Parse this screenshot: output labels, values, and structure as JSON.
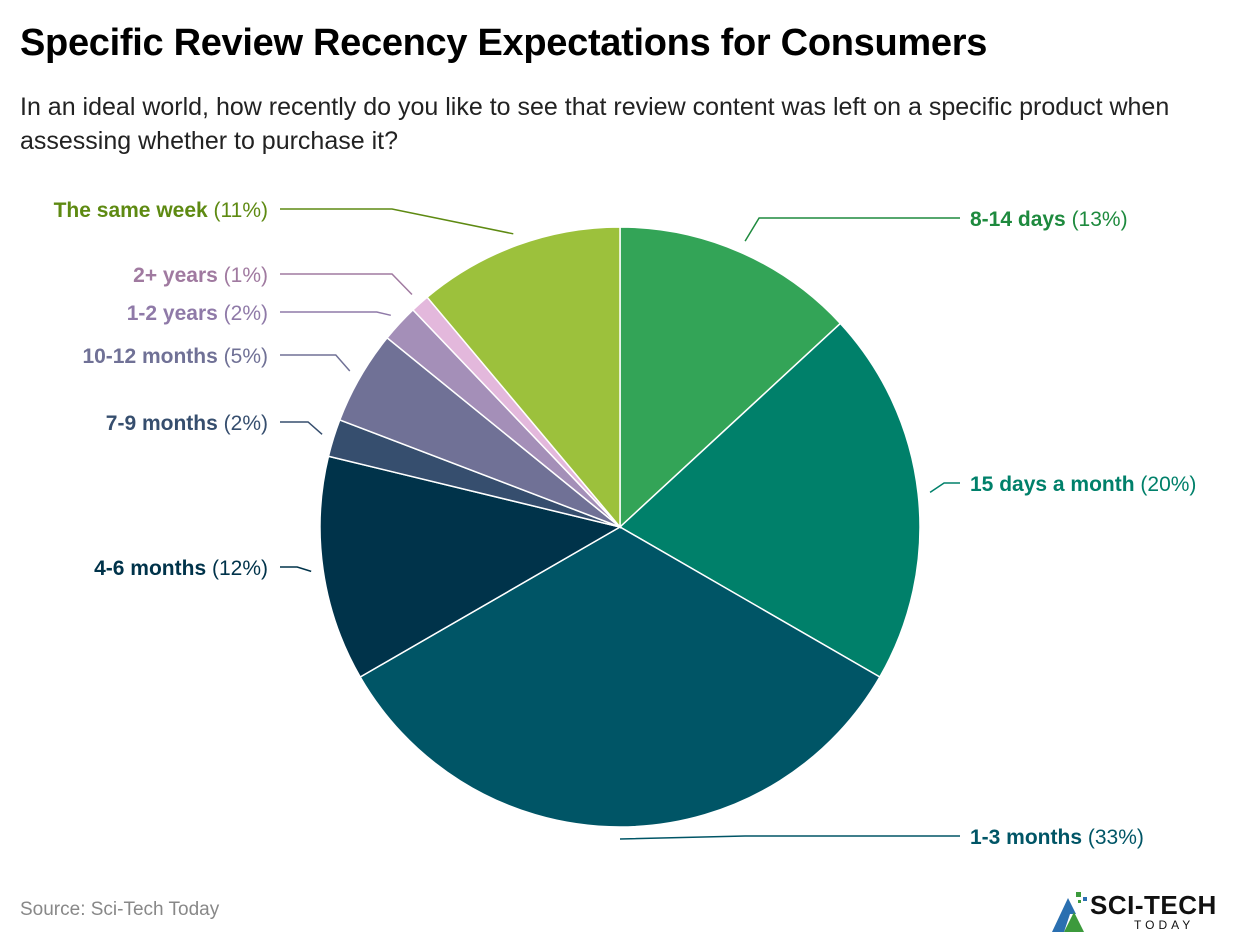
{
  "header": {
    "title": "Specific Review Recency Expectations for Consumers",
    "subtitle": "In an ideal world, how recently do you like to see that review content was left on a specific product when assessing whether to purchase it?"
  },
  "footer": {
    "source": "Source: Sci-Tech Today",
    "logo_word": "SCI-TECH",
    "logo_sub": "TODAY"
  },
  "chart_data": {
    "type": "pie",
    "start_angle_deg": 0,
    "direction": "clockwise",
    "slices": [
      {
        "label": "8-14 days",
        "value": 13,
        "pct_label": "(13%)",
        "color": "#33a457",
        "label_color": "#1e8a3e",
        "side": "right"
      },
      {
        "label": "15 days a month",
        "value": 20,
        "pct_label": "(20%)",
        "color": "#00806a",
        "label_color": "#00806a",
        "side": "right"
      },
      {
        "label": "1-3 months",
        "value": 33,
        "pct_label": "(33%)",
        "color": "#005566",
        "label_color": "#005566",
        "side": "right"
      },
      {
        "label": "4-6 months",
        "value": 12,
        "pct_label": "(12%)",
        "color": "#00334a",
        "label_color": "#00334a",
        "side": "left"
      },
      {
        "label": "7-9 months",
        "value": 2,
        "pct_label": "(2%)",
        "color": "#364e6e",
        "label_color": "#364e6e",
        "side": "left"
      },
      {
        "label": "10-12 months",
        "value": 5,
        "pct_label": "(5%)",
        "color": "#707196",
        "label_color": "#707196",
        "side": "left"
      },
      {
        "label": "1-2 years",
        "value": 2,
        "pct_label": "(2%)",
        "color": "#a48fb8",
        "label_color": "#8f7aa8",
        "side": "left"
      },
      {
        "label": "2+ years",
        "value": 1,
        "pct_label": "(1%)",
        "color": "#e3b8dc",
        "label_color": "#a07aa0",
        "side": "left"
      },
      {
        "label": "The same week",
        "value": 11,
        "pct_label": "(11%)",
        "color": "#9cc13c",
        "label_color": "#5e8a12",
        "side": "left"
      }
    ]
  }
}
